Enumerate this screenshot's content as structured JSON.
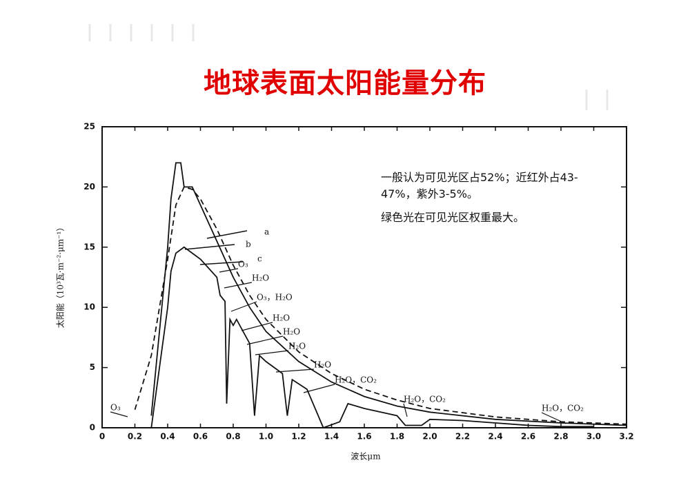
{
  "notes": [
    "一般认为可见光区占52%；近红外占43-47%，紫外3-5%。",
    "绿色光在可见光区权重最大。"
  ],
  "chart_data": {
    "type": "line",
    "title": "地球表面太阳能量分布",
    "xlabel": "波长μm",
    "ylabel": "太阳能（10³瓦·m⁻²·μm⁻¹）",
    "xlim": [
      0,
      3.2
    ],
    "ylim": [
      0,
      25
    ],
    "xticks": [
      0,
      0.2,
      0.4,
      0.6,
      0.8,
      {
        "value": 1,
        "label": "1.0"
      },
      1.2,
      1.4,
      1.6,
      1.8,
      {
        "value": 2,
        "label": "2.0"
      },
      2.2,
      2.4,
      2.6,
      2.8,
      {
        "value": 3,
        "label": "3.0"
      },
      3.2
    ],
    "yticks": [
      0,
      5,
      10,
      15,
      20,
      25
    ],
    "series": [
      {
        "name": "a",
        "color": "#111111",
        "style": "solid",
        "x": [
          0.3,
          0.35,
          0.4,
          0.42,
          0.45,
          0.48,
          0.5,
          0.55,
          0.6,
          0.7,
          0.8,
          0.9,
          1.0,
          1.2,
          1.4,
          1.6,
          1.8,
          2.0,
          2.4,
          2.8,
          3.2
        ],
        "values": [
          1,
          8,
          15,
          19,
          22,
          22,
          20,
          20,
          18.5,
          15.5,
          12.5,
          10,
          8,
          5.5,
          3.8,
          2.6,
          1.8,
          1.3,
          0.7,
          0.4,
          0.2
        ]
      },
      {
        "name": "b",
        "color": "#111111",
        "style": "dashed",
        "x": [
          0.2,
          0.3,
          0.4,
          0.45,
          0.5,
          0.55,
          0.6,
          0.7,
          0.8,
          0.9,
          1.0,
          1.2,
          1.4,
          1.6,
          1.8,
          2.0,
          2.4,
          2.8,
          3.2
        ],
        "values": [
          1.5,
          6,
          14,
          18.5,
          20,
          19.8,
          19,
          16.5,
          13.5,
          11,
          9,
          6.3,
          4.5,
          3.2,
          2.3,
          1.6,
          0.9,
          0.5,
          0.3
        ]
      },
      {
        "name": "c",
        "color": "#111111",
        "style": "solid",
        "x": [
          0.3,
          0.35,
          0.4,
          0.42,
          0.45,
          0.5,
          0.55,
          0.6,
          0.7,
          0.72,
          0.75,
          0.76,
          0.78,
          0.8,
          0.82,
          0.9,
          0.93,
          0.96,
          1.0,
          1.1,
          1.13,
          1.16,
          1.25,
          1.35,
          1.45,
          1.5,
          1.6,
          1.7,
          1.8,
          1.85,
          1.95,
          2.0,
          2.2,
          2.4,
          2.6,
          2.8,
          3.0
        ],
        "values": [
          0,
          5,
          10,
          13,
          14.5,
          15,
          14.5,
          14,
          12.5,
          11,
          10.5,
          2,
          9,
          8.5,
          9,
          7,
          1,
          6,
          5.5,
          4.5,
          1,
          4,
          3.2,
          0,
          0.5,
          2,
          1.6,
          1.3,
          1,
          0.2,
          0.2,
          0.7,
          0.6,
          0.4,
          0.2,
          0.1,
          0.1
        ]
      }
    ],
    "annotations": [
      "O₃",
      "H₂O",
      "O₃，H₂O",
      "H₂O",
      "H₂O",
      "H₂O",
      "H₂O",
      "H₂O，CO₂",
      "H₂O，CO₂",
      "H₂O，CO₂",
      "O₃"
    ]
  }
}
